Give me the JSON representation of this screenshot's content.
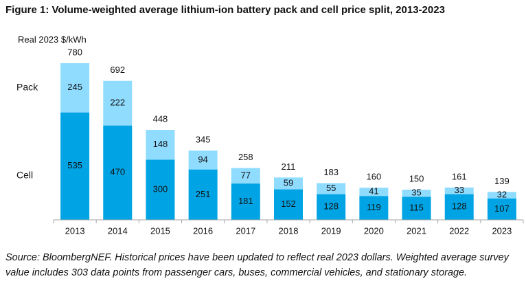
{
  "title": "Figure 1: Volume-weighted average lithium-ion battery pack and cell price split, 2013-2023",
  "ylabel": "Real 2023 $/kWh",
  "source": "Source: BloombergNEF. Historical prices have been updated to reflect real 2023 dollars. Weighted average survey value includes 303 data points from passenger cars, buses, commercial vehicles, and stationary storage.",
  "colors": {
    "cell": "#00a4e4",
    "pack": "#8fdcff",
    "axis": "#a6a6a6",
    "text": "#111111"
  },
  "chart_data": {
    "type": "bar",
    "stacked": true,
    "categories": [
      "2013",
      "2014",
      "2015",
      "2016",
      "2017",
      "2018",
      "2019",
      "2020",
      "2021",
      "2022",
      "2023"
    ],
    "series": [
      {
        "name": "Cell",
        "values": [
          535,
          470,
          300,
          251,
          181,
          152,
          128,
          119,
          115,
          128,
          107
        ]
      },
      {
        "name": "Pack",
        "values": [
          245,
          222,
          148,
          94,
          77,
          59,
          55,
          41,
          35,
          33,
          32
        ]
      }
    ],
    "totals": [
      780,
      692,
      448,
      345,
      258,
      211,
      183,
      160,
      150,
      161,
      139
    ],
    "ylabel": "Real 2023 $/kWh",
    "ylim": [
      0,
      780
    ],
    "grid": false,
    "legend": "left, inline labels"
  }
}
